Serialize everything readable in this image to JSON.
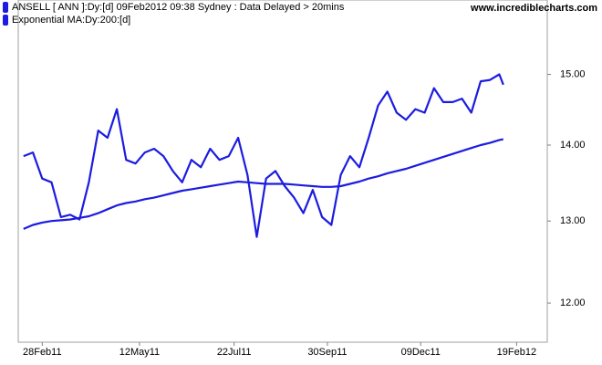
{
  "chart_data": {
    "type": "line",
    "watermark": "www.incrediblecharts.com",
    "log_scale": true,
    "x": [
      "2011-02-14",
      "2011-02-21",
      "2011-02-28",
      "2011-03-07",
      "2011-03-14",
      "2011-03-21",
      "2011-03-28",
      "2011-04-04",
      "2011-04-11",
      "2011-04-18",
      "2011-04-25",
      "2011-05-02",
      "2011-05-09",
      "2011-05-16",
      "2011-05-23",
      "2011-05-30",
      "2011-06-06",
      "2011-06-13",
      "2011-06-20",
      "2011-06-27",
      "2011-07-04",
      "2011-07-11",
      "2011-07-18",
      "2011-07-25",
      "2011-08-01",
      "2011-08-08",
      "2011-08-15",
      "2011-08-22",
      "2011-08-29",
      "2011-09-05",
      "2011-09-12",
      "2011-09-19",
      "2011-09-26",
      "2011-10-03",
      "2011-10-10",
      "2011-10-17",
      "2011-10-24",
      "2011-10-31",
      "2011-11-07",
      "2011-11-14",
      "2011-11-21",
      "2011-11-28",
      "2011-12-05",
      "2011-12-12",
      "2011-12-19",
      "2011-12-26",
      "2012-01-02",
      "2012-01-09",
      "2012-01-16",
      "2012-01-23",
      "2012-01-30",
      "2012-02-06",
      "2012-02-09"
    ],
    "series": [
      {
        "name": "ANSELL [ ANN ]:Dy:[d]  09Feb2012 09:38 Sydney : Data Delayed > 20mins",
        "color": "#1c1ce0",
        "values": [
          13.85,
          13.9,
          13.55,
          13.5,
          13.05,
          13.08,
          13.02,
          13.5,
          14.2,
          14.1,
          14.5,
          13.8,
          13.75,
          13.9,
          13.95,
          13.85,
          13.65,
          13.5,
          13.8,
          13.7,
          13.95,
          13.8,
          13.85,
          14.1,
          13.6,
          12.8,
          13.55,
          13.65,
          13.45,
          13.3,
          13.1,
          13.4,
          13.05,
          12.95,
          13.6,
          13.85,
          13.7,
          14.1,
          14.55,
          14.75,
          14.45,
          14.35,
          14.5,
          14.45,
          14.8,
          14.6,
          14.6,
          14.65,
          14.45,
          14.9,
          14.92,
          15.0,
          14.85
        ]
      },
      {
        "name": "Exponential MA:Dy:200:[d]",
        "color": "#1c1ce0",
        "values": [
          12.9,
          12.95,
          12.98,
          13.0,
          13.01,
          13.02,
          13.04,
          13.06,
          13.1,
          13.15,
          13.2,
          13.23,
          13.25,
          13.28,
          13.3,
          13.33,
          13.36,
          13.39,
          13.41,
          13.43,
          13.45,
          13.47,
          13.49,
          13.51,
          13.5,
          13.49,
          13.48,
          13.48,
          13.48,
          13.47,
          13.46,
          13.45,
          13.44,
          13.44,
          13.45,
          13.48,
          13.51,
          13.55,
          13.58,
          13.62,
          13.65,
          13.68,
          13.72,
          13.76,
          13.8,
          13.84,
          13.88,
          13.92,
          13.96,
          14.0,
          14.03,
          14.07,
          14.08
        ]
      }
    ],
    "xlim": [
      "2011-02-10",
      "2012-03-13"
    ],
    "xticks": [
      {
        "value": "2011-02-28",
        "label": "28Feb11"
      },
      {
        "value": "2011-05-12",
        "label": "12May11"
      },
      {
        "value": "2011-07-22",
        "label": "22Jul11"
      },
      {
        "value": "2011-09-30",
        "label": "30Sep11"
      },
      {
        "value": "2011-12-09",
        "label": "09Dec11"
      },
      {
        "value": "2012-02-19",
        "label": "19Feb12"
      }
    ],
    "ylim": [
      11.55,
      16.13
    ],
    "yticks": [
      {
        "value": 12,
        "label": "12.00"
      },
      {
        "value": 13,
        "label": "13.00"
      },
      {
        "value": 14,
        "label": "14.00"
      },
      {
        "value": 15,
        "label": "15.00"
      }
    ]
  }
}
